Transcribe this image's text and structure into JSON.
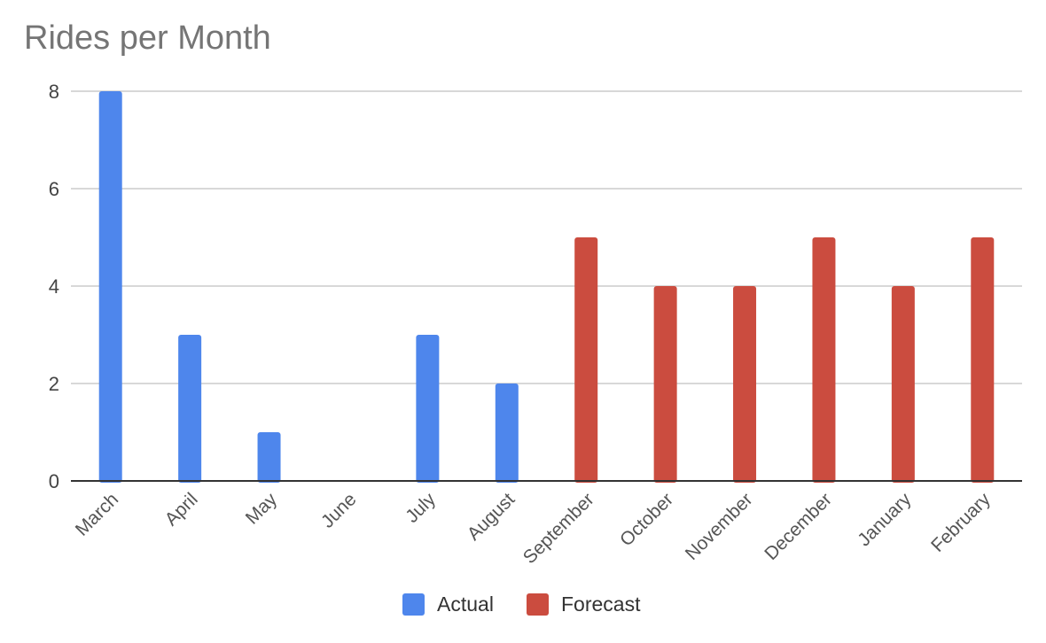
{
  "chart_data": {
    "type": "bar",
    "title": "Rides per Month",
    "xlabel": "",
    "ylabel": "",
    "categories": [
      "March",
      "April",
      "May",
      "June",
      "July",
      "August",
      "September",
      "October",
      "November",
      "December",
      "January",
      "February"
    ],
    "series": [
      {
        "name": "Actual",
        "color": "#4e86ec",
        "values": [
          8,
          3,
          1,
          0,
          3,
          2,
          null,
          null,
          null,
          null,
          null,
          null
        ]
      },
      {
        "name": "Forecast",
        "color": "#cb4c3f",
        "values": [
          null,
          null,
          null,
          null,
          null,
          null,
          5,
          4,
          4,
          5,
          4,
          5
        ]
      }
    ],
    "ylim": [
      0,
      8
    ],
    "yticks": [
      0,
      2,
      4,
      6,
      8
    ],
    "grid": true,
    "legend_position": "bottom"
  }
}
